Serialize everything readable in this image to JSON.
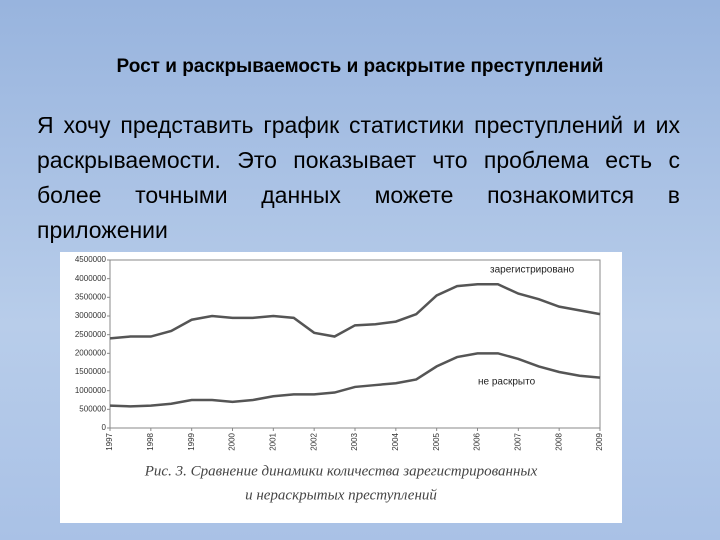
{
  "slide": {
    "title": "Рост и раскрываемость и раскрытие преступлений",
    "text": "Я хочу представить график статистики преступлений и их раскрываемости. Это показывает что проблема есть с более точными данных можете познакомится в приложении"
  },
  "chart_data": {
    "type": "line",
    "caption": [
      "Рис. 3. Сравнение динамики количества зарегистрированных",
      "и нераскрытых преступлений"
    ],
    "x": [
      1997,
      1997.5,
      1998,
      1998.5,
      1999,
      1999.5,
      2000,
      2000.5,
      2001,
      2001.5,
      2002,
      2002.5,
      2003,
      2003.5,
      2004,
      2004.5,
      2005,
      2005.5,
      2006,
      2006.5,
      2007,
      2007.5,
      2008,
      2008.5,
      2009
    ],
    "series": [
      {
        "name": "зарегистрировано",
        "color": "#555555",
        "values": [
          2400000,
          2450000,
          2450000,
          2600000,
          2900000,
          3000000,
          2950000,
          2950000,
          3000000,
          2950000,
          2550000,
          2450000,
          2750000,
          2780000,
          2850000,
          3050000,
          3550000,
          3800000,
          3850000,
          3850000,
          3600000,
          3450000,
          3250000,
          3150000,
          3050000
        ]
      },
      {
        "name": "не раскрыто",
        "color": "#555555",
        "values": [
          600000,
          580000,
          600000,
          650000,
          750000,
          750000,
          700000,
          750000,
          850000,
          900000,
          900000,
          950000,
          1100000,
          1150000,
          1200000,
          1300000,
          1650000,
          1900000,
          2000000,
          2000000,
          1850000,
          1650000,
          1500000,
          1400000,
          1350000
        ]
      }
    ],
    "xlim": [
      1997,
      2009
    ],
    "xticks": [
      1997,
      1998,
      1999,
      2000,
      2001,
      2002,
      2003,
      2004,
      2005,
      2006,
      2007,
      2008,
      2009
    ],
    "ylim": [
      0,
      4500000
    ],
    "yticks": [
      0,
      500000,
      1000000,
      1500000,
      2000000,
      2500000,
      3000000,
      3500000,
      4000000,
      4500000
    ]
  }
}
